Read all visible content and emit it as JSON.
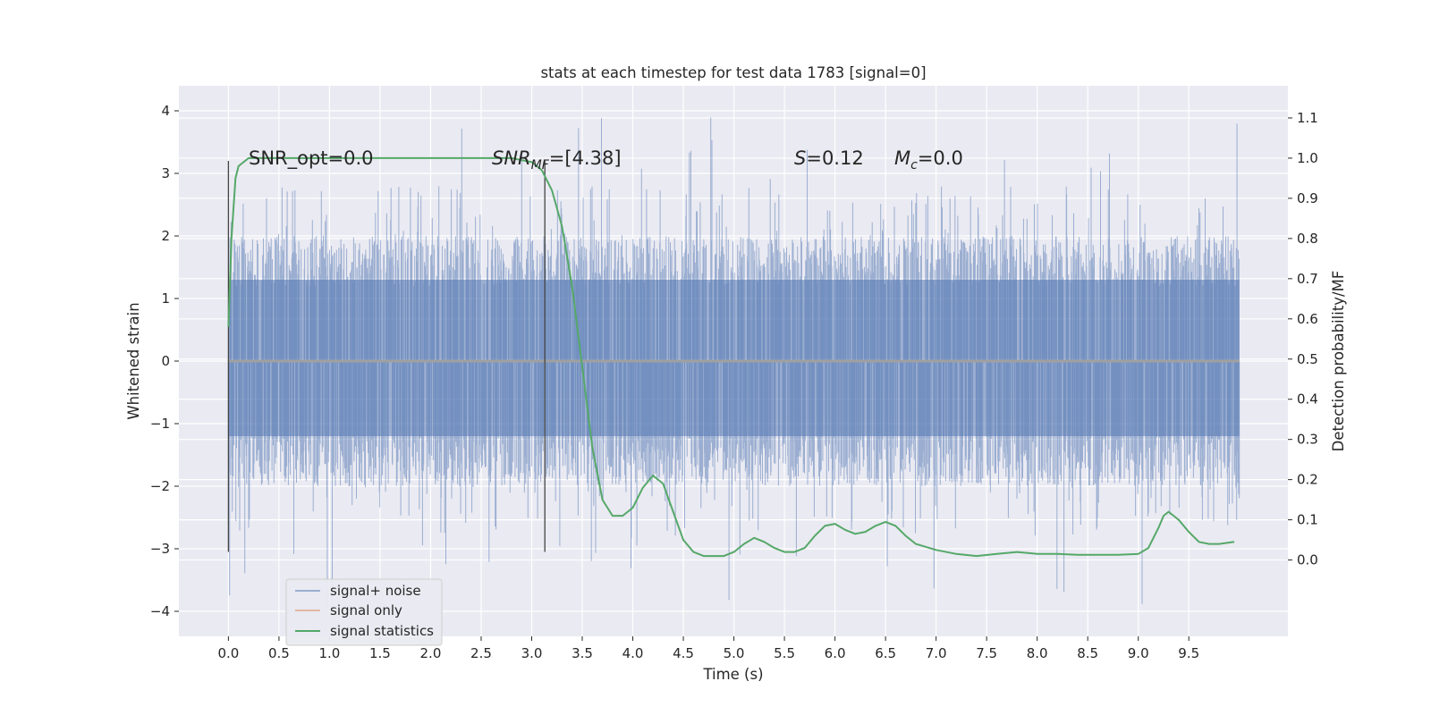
{
  "chart_data": {
    "type": "line",
    "title": "stats at each timestep for test data 1783 [signal=0]",
    "xlabel": "Time (s)",
    "ylabel": "Whitened strain",
    "ylabel_right": "Detection probability/MF",
    "xlim": [
      -0.49,
      10.48
    ],
    "ylim": [
      -4.4,
      4.4
    ],
    "ylim_right": [
      -0.19,
      1.18
    ],
    "x_ticks": [
      "0.0",
      "0.5",
      "1.0",
      "1.5",
      "2.0",
      "2.5",
      "3.0",
      "3.5",
      "4.0",
      "4.5",
      "5.0",
      "5.5",
      "6.0",
      "6.5",
      "7.0",
      "7.5",
      "8.0",
      "8.5",
      "9.0",
      "9.5"
    ],
    "y_ticks": [
      "4",
      "3",
      "2",
      "1",
      "0",
      "−1",
      "−2",
      "−3",
      "−4"
    ],
    "y_right_ticks": [
      "1.1",
      "1.0",
      "0.9",
      "0.8",
      "0.7",
      "0.6",
      "0.5",
      "0.4",
      "0.3",
      "0.2",
      "0.1",
      "0.0"
    ],
    "grid": true,
    "legend_placement": "lower-left",
    "annotations": {
      "snr_opt": "SNR_opt=0.0",
      "snr_mf_label": "SNR",
      "snr_mf_sub": "MF",
      "snr_mf_value": "=[4.38]",
      "s_label": "S",
      "s_value": "=0.12",
      "mc_label": "M",
      "mc_sub": "c",
      "mc_value": "=0.0"
    },
    "vlines": [
      {
        "x": 0.0,
        "y_range": [
          -3.05,
          3.2
        ]
      },
      {
        "x": 3.13,
        "y_range": [
          -3.05,
          3.2
        ]
      }
    ],
    "series": [
      {
        "name": "signal+ noise",
        "color": "#4c72b0",
        "kind": "noise",
        "x_range": [
          0.0,
          10.0
        ],
        "typical_range": [
          -1.2,
          1.3
        ],
        "extreme_range": [
          -3.9,
          4.05
        ]
      },
      {
        "name": "signal only",
        "color": "#dd8452",
        "kind": "flat",
        "x": [
          0.0,
          10.0
        ],
        "y": [
          0.0,
          0.0
        ]
      },
      {
        "name": "signal statistics",
        "color": "#55a868",
        "axis": "right",
        "x": [
          0.0,
          0.03,
          0.07,
          0.1,
          0.15,
          0.2,
          0.3,
          0.5,
          1.0,
          1.5,
          2.0,
          2.5,
          2.8,
          3.0,
          3.1,
          3.2,
          3.3,
          3.4,
          3.5,
          3.6,
          3.7,
          3.8,
          3.9,
          4.0,
          4.1,
          4.2,
          4.3,
          4.4,
          4.5,
          4.6,
          4.7,
          4.8,
          4.9,
          5.0,
          5.1,
          5.2,
          5.3,
          5.4,
          5.5,
          5.6,
          5.7,
          5.8,
          5.9,
          6.0,
          6.1,
          6.2,
          6.3,
          6.4,
          6.5,
          6.6,
          6.7,
          6.8,
          7.0,
          7.2,
          7.4,
          7.6,
          7.8,
          8.0,
          8.2,
          8.4,
          8.6,
          8.8,
          9.0,
          9.1,
          9.2,
          9.25,
          9.3,
          9.4,
          9.5,
          9.6,
          9.7,
          9.8,
          9.95
        ],
        "y": [
          0.58,
          0.8,
          0.95,
          0.98,
          0.99,
          1.0,
          1.0,
          1.0,
          1.0,
          1.0,
          1.0,
          1.0,
          1.0,
          0.99,
          0.97,
          0.92,
          0.83,
          0.68,
          0.48,
          0.28,
          0.15,
          0.11,
          0.11,
          0.13,
          0.18,
          0.21,
          0.19,
          0.12,
          0.05,
          0.02,
          0.01,
          0.01,
          0.01,
          0.02,
          0.04,
          0.055,
          0.045,
          0.03,
          0.02,
          0.02,
          0.03,
          0.06,
          0.085,
          0.09,
          0.075,
          0.065,
          0.07,
          0.085,
          0.095,
          0.085,
          0.06,
          0.04,
          0.025,
          0.015,
          0.01,
          0.015,
          0.02,
          0.015,
          0.015,
          0.013,
          0.013,
          0.013,
          0.015,
          0.03,
          0.08,
          0.11,
          0.12,
          0.1,
          0.07,
          0.045,
          0.04,
          0.04,
          0.045
        ]
      }
    ]
  }
}
